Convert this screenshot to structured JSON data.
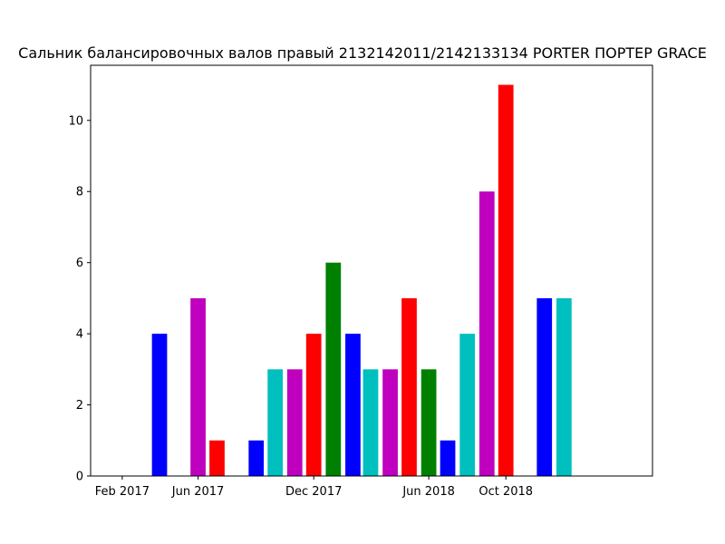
{
  "chart_data": {
    "type": "bar",
    "title": "Сальник балансировочных валов правый 2132142011/2142133134 PORTER ПОРТЕР GRACE",
    "xlabel": "",
    "ylabel": "",
    "x_ticks": [
      "Feb 2017",
      "Jun 2017",
      "Dec 2017",
      "Jun 2018",
      "Oct 2018"
    ],
    "x_tick_dates": [
      "2017-02-01",
      "2017-06-01",
      "2017-12-01",
      "2018-06-01",
      "2018-10-01"
    ],
    "y_ticks": [
      "0",
      "2",
      "4",
      "6",
      "8",
      "10"
    ],
    "ylim": [
      0,
      11.55
    ],
    "xlim": [
      "2016-12-13",
      "2019-05-21"
    ],
    "grid": false,
    "colors_cycle": [
      "#0000ff",
      "#bf00bf",
      "#ff0000",
      "#00bfbf",
      "#008000"
    ],
    "bars": [
      {
        "date": "2017-04-01",
        "value": 4,
        "color": "#0000ff"
      },
      {
        "date": "2017-06-01",
        "value": 5,
        "color": "#bf00bf"
      },
      {
        "date": "2017-07-01",
        "value": 1,
        "color": "#ff0000"
      },
      {
        "date": "2017-09-01",
        "value": 1,
        "color": "#0000ff"
      },
      {
        "date": "2017-10-01",
        "value": 3,
        "color": "#00bfbf"
      },
      {
        "date": "2017-11-01",
        "value": 3,
        "color": "#bf00bf"
      },
      {
        "date": "2017-12-01",
        "value": 4,
        "color": "#ff0000"
      },
      {
        "date": "2018-01-01",
        "value": 6,
        "color": "#008000"
      },
      {
        "date": "2018-02-01",
        "value": 4,
        "color": "#0000ff"
      },
      {
        "date": "2018-03-01",
        "value": 3,
        "color": "#00bfbf"
      },
      {
        "date": "2018-04-01",
        "value": 3,
        "color": "#bf00bf"
      },
      {
        "date": "2018-05-01",
        "value": 5,
        "color": "#ff0000"
      },
      {
        "date": "2018-06-01",
        "value": 3,
        "color": "#008000"
      },
      {
        "date": "2018-07-01",
        "value": 1,
        "color": "#0000ff"
      },
      {
        "date": "2018-08-01",
        "value": 4,
        "color": "#00bfbf"
      },
      {
        "date": "2018-09-01",
        "value": 8,
        "color": "#bf00bf"
      },
      {
        "date": "2018-10-01",
        "value": 11,
        "color": "#ff0000"
      },
      {
        "date": "2018-12-01",
        "value": 5,
        "color": "#0000ff"
      },
      {
        "date": "2019-01-01",
        "value": 5,
        "color": "#00bfbf"
      }
    ]
  }
}
